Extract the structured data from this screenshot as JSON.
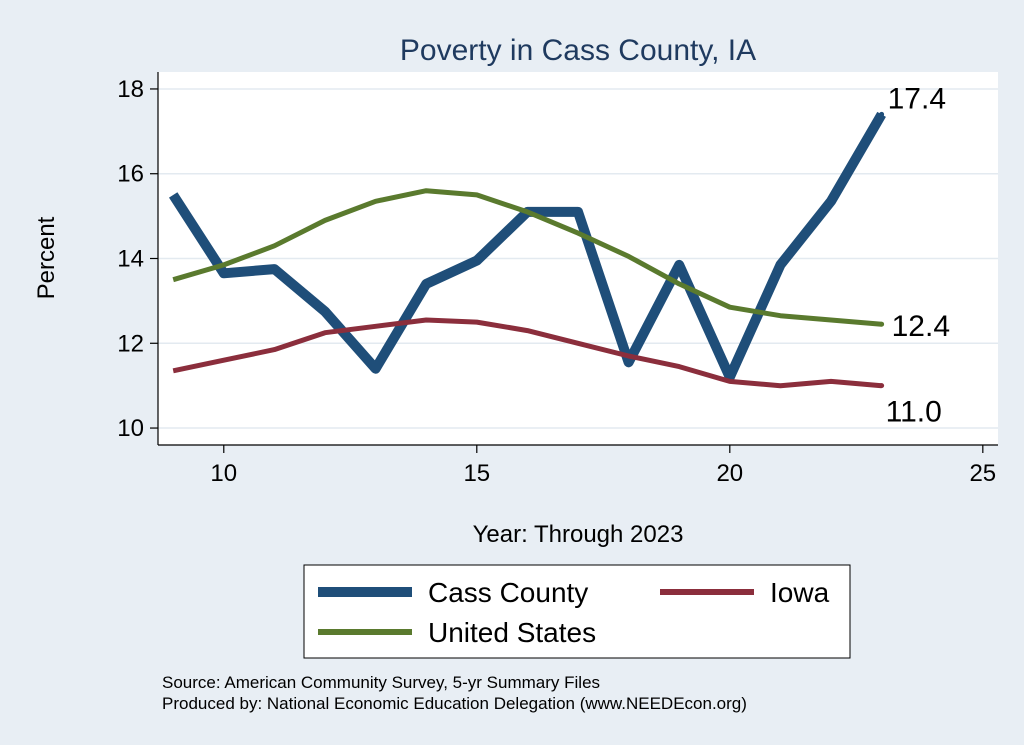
{
  "chart_data": {
    "type": "line",
    "title": "Poverty in Cass County, IA",
    "xlabel": "Year: Through 2023",
    "ylabel": "Percent",
    "xlim": [
      8.7,
      25.3
    ],
    "ylim": [
      9.6,
      18.4
    ],
    "xticks": [
      10,
      15,
      20,
      25
    ],
    "yticks": [
      10,
      12,
      14,
      16,
      18
    ],
    "grid": true,
    "series": [
      {
        "name": "Cass County",
        "color": "#1f4e79",
        "x": [
          9,
          10,
          11,
          12,
          13,
          14,
          15,
          16,
          17,
          18,
          19,
          20,
          21,
          22,
          23
        ],
        "values": [
          15.5,
          13.65,
          13.75,
          12.75,
          11.4,
          13.4,
          13.95,
          15.1,
          15.1,
          11.55,
          13.85,
          11.2,
          13.85,
          15.35,
          17.4
        ],
        "end_label": "17.4"
      },
      {
        "name": "Iowa",
        "color": "#8b2e3c",
        "x": [
          9,
          10,
          11,
          12,
          13,
          14,
          15,
          16,
          17,
          18,
          19,
          20,
          21,
          22,
          23
        ],
        "values": [
          11.35,
          11.6,
          11.85,
          12.25,
          12.4,
          12.55,
          12.5,
          12.3,
          12.0,
          11.7,
          11.45,
          11.1,
          11.0,
          11.1,
          11.0
        ],
        "end_label": "11.0"
      },
      {
        "name": "United States",
        "color": "#5a7a2e",
        "x": [
          9,
          10,
          11,
          12,
          13,
          14,
          15,
          16,
          17,
          18,
          19,
          20,
          21,
          22,
          23
        ],
        "values": [
          13.5,
          13.85,
          14.3,
          14.9,
          15.35,
          15.6,
          15.5,
          15.1,
          14.6,
          14.05,
          13.4,
          12.85,
          12.65,
          12.55,
          12.45
        ],
        "end_label": "12.4"
      }
    ],
    "legend": {
      "placement": "bottom",
      "items": [
        "Cass County",
        "Iowa",
        "United States"
      ]
    }
  },
  "footer": {
    "source": "Source: American Community Survey, 5-yr Summary Files",
    "produced_by": "Produced by: National Economic Education Delegation (www.NEEDEcon.org)"
  },
  "colors": {
    "background": "#e8eef4",
    "plot_background": "#ffffff",
    "grid": "#e3eaf0",
    "title": "#1f3a5f"
  }
}
